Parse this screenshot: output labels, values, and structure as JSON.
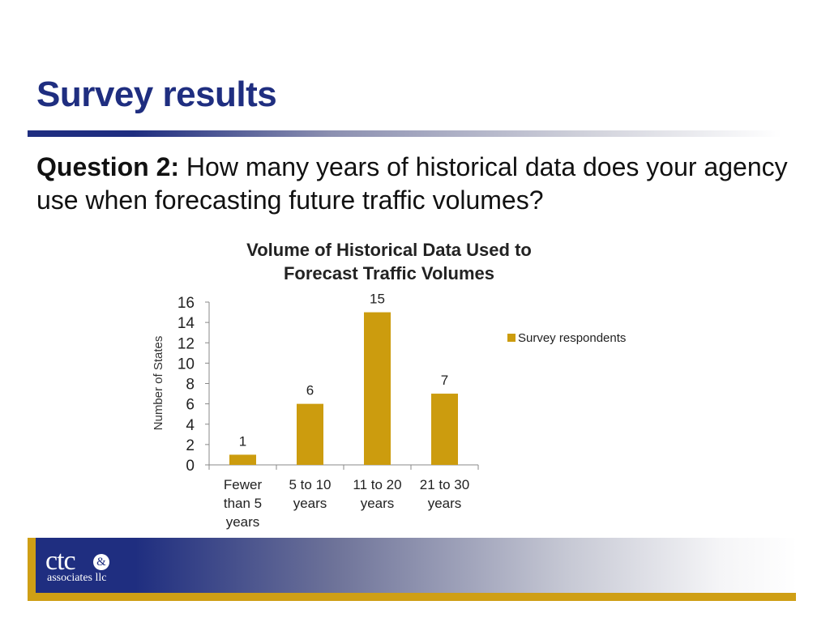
{
  "slide": {
    "title": "Survey results",
    "question_label": "Question 2:",
    "question_text": " How many years of historical data does your agency use when forecasting future traffic volumes?"
  },
  "chart_data": {
    "type": "bar",
    "title_lines": [
      "Volume of Historical Data Used to",
      "Forecast Traffic Volumes"
    ],
    "ylabel": "Number of States",
    "xlabel": "",
    "ylim": [
      0,
      16
    ],
    "yticks": [
      0,
      2,
      4,
      6,
      8,
      10,
      12,
      14,
      16
    ],
    "categories": [
      [
        "Fewer",
        "than 5",
        "years"
      ],
      [
        "5 to 10",
        "years"
      ],
      [
        "11 to 20",
        "years"
      ],
      [
        "21 to 30",
        "years"
      ]
    ],
    "series": [
      {
        "name": "Survey respondents",
        "values": [
          1,
          6,
          15,
          7
        ],
        "color": "#cc9c0e"
      }
    ],
    "data_labels": [
      "1",
      "6",
      "15",
      "7"
    ],
    "legend_position": "right",
    "grid": false
  },
  "footer": {
    "logo_mark": "ctc",
    "logo_amp": "&",
    "logo_sub": "associates llc"
  },
  "colors": {
    "title": "#1f2e80",
    "bar": "#cc9c0e",
    "accent_gold": "#cf9f15"
  }
}
